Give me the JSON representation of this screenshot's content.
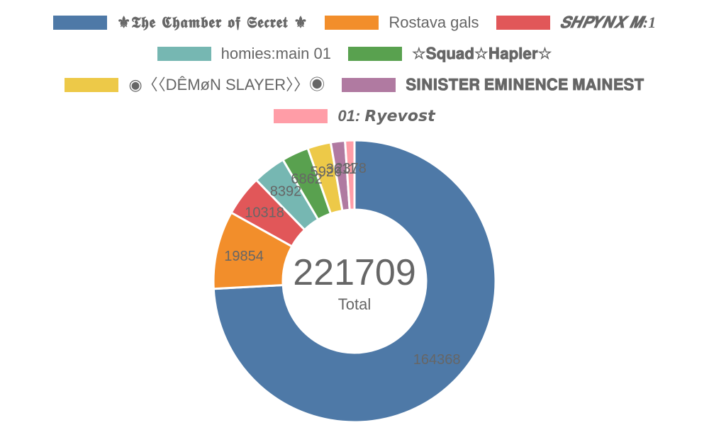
{
  "chart_data": {
    "type": "pie",
    "variant": "doughnut",
    "legend_position": "top",
    "categories": [
      "⚜𝕿𝖍𝖊 𝕮𝖍𝖆𝖒𝖇𝖊𝖗 𝖔𝖋 𝕾𝖊𝖈𝖗𝖊𝖙 ⚜",
      "Rostava gals",
      "𝑺𝑯𝑷𝒀𝑵𝑿 𝑴:1",
      "homies:main 01",
      "☆𝐒𝐪𝐮𝐚𝐝☆𝐇𝐚𝐩𝐥𝐞𝐫☆",
      "◉〈〈DÊMøN SLAYER〉〉◉",
      "𝐒𝐈𝐍𝐈𝐒𝐓𝐄𝐑 𝐄𝐌𝐈𝐍𝐄𝐍𝐂𝐄 𝐌𝐀𝐈𝐍𝐄𝐒𝐓",
      "01: 𝙍𝙮𝙚𝙫𝙤𝙨𝙩"
    ],
    "values": [
      164368,
      19854,
      10318,
      8392,
      6862,
      5926,
      3611,
      2378
    ],
    "colors": [
      "#4e79a7",
      "#f28e2b",
      "#e15759",
      "#76b7b2",
      "#59a14f",
      "#edc948",
      "#b07aa1",
      "#ff9da7"
    ],
    "slice_labels": [
      "164368",
      "19854",
      "10318",
      "8392",
      "6862",
      "5926",
      "3611",
      "2378"
    ],
    "center_total": "221709",
    "center_caption": "Total"
  }
}
